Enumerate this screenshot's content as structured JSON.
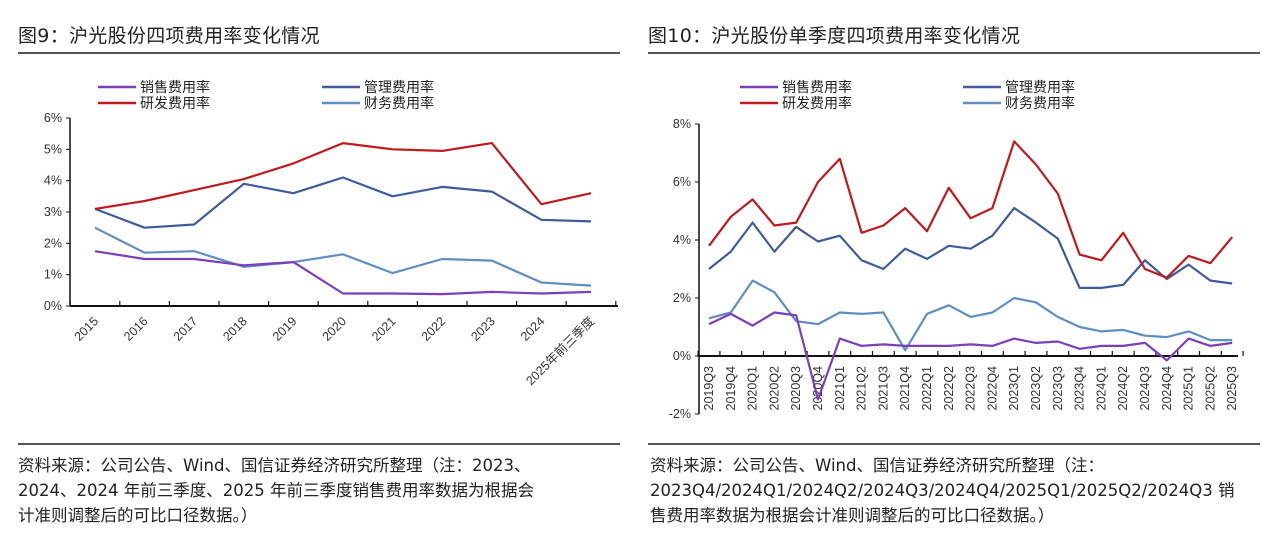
{
  "colors": {
    "sales": "#7b3fb8",
    "rnd": "#c0191e",
    "admin": "#3f5b9c",
    "finance": "#5f8ec0",
    "axis": "#111111"
  },
  "left": {
    "title": "图9：沪光股份四项费用率变化情况",
    "source_lines": [
      "资料来源：公司公告、Wind、国信证券经济研究所整理（注：2023、",
      "2024、2024 年前三季度、2025 年前三季度销售费用率数据为根据会",
      "计准则调整后的可比口径数据。）"
    ]
  },
  "right": {
    "title": "图10：沪光股份单季度四项费用率变化情况",
    "source_lines": [
      "资料来源：公司公告、Wind、国信证券经济研究所整理（注：",
      "2023Q4/2024Q1/2024Q2/2024Q3/2024Q4/2025Q1/2025Q2/2024Q3   销",
      "售费用率数据为根据会计准则调整后的可比口径数据。）"
    ]
  },
  "chart_data": [
    {
      "type": "line",
      "title": "图9：沪光股份四项费用率变化情况",
      "xlabel": "",
      "ylabel": "",
      "ylim": [
        0,
        6
      ],
      "yticks": [
        "0%",
        "1%",
        "2%",
        "3%",
        "4%",
        "5%",
        "6%"
      ],
      "ytick_values": [
        0,
        1,
        2,
        3,
        4,
        5,
        6
      ],
      "grid": false,
      "legend": "top",
      "categories": [
        "2015",
        "2016",
        "2017",
        "2018",
        "2019",
        "2020",
        "2021",
        "2022",
        "2023",
        "2024",
        "2025年前三季度"
      ],
      "series": [
        {
          "key": "sales",
          "name": "销售费用率",
          "values": [
            1.75,
            1.5,
            1.5,
            1.3,
            1.4,
            0.4,
            0.4,
            0.38,
            0.45,
            0.4,
            0.45
          ]
        },
        {
          "key": "admin",
          "name": "管理费用率",
          "values": [
            3.1,
            2.5,
            2.6,
            3.9,
            3.6,
            4.1,
            3.5,
            3.8,
            3.65,
            2.75,
            2.7
          ]
        },
        {
          "key": "rnd",
          "name": "研发费用率",
          "values": [
            3.1,
            3.35,
            3.7,
            4.05,
            4.55,
            5.2,
            5.0,
            4.95,
            5.2,
            3.25,
            3.6
          ]
        },
        {
          "key": "finance",
          "name": "财务费用率",
          "values": [
            2.5,
            1.7,
            1.75,
            1.25,
            1.4,
            1.65,
            1.05,
            1.5,
            1.45,
            0.75,
            0.65
          ]
        }
      ]
    },
    {
      "type": "line",
      "title": "图10：沪光股份单季度四项费用率变化情况",
      "xlabel": "",
      "ylabel": "",
      "ylim": [
        -2,
        8
      ],
      "yticks": [
        "-2%",
        "0%",
        "2%",
        "4%",
        "6%",
        "8%"
      ],
      "ytick_values": [
        -2,
        0,
        2,
        4,
        6,
        8
      ],
      "grid": false,
      "legend": "top",
      "categories": [
        "2019Q3",
        "2019Q4",
        "2020Q1",
        "2020Q2",
        "2020Q3",
        "2020Q4",
        "2021Q1",
        "2021Q2",
        "2021Q3",
        "2021Q4",
        "2022Q1",
        "2022Q2",
        "2022Q3",
        "2022Q4",
        "2023Q1",
        "2023Q2",
        "2023Q3",
        "2023Q4",
        "2024Q1",
        "2024Q2",
        "2024Q3",
        "2024Q4",
        "2025Q1",
        "2025Q2",
        "2025Q3"
      ],
      "series": [
        {
          "key": "sales",
          "name": "销售费用率",
          "values": [
            1.1,
            1.45,
            1.05,
            1.5,
            1.4,
            -1.5,
            0.6,
            0.35,
            0.4,
            0.35,
            0.35,
            0.35,
            0.4,
            0.35,
            0.6,
            0.45,
            0.5,
            0.25,
            0.35,
            0.35,
            0.45,
            -0.15,
            0.6,
            0.35,
            0.45
          ]
        },
        {
          "key": "admin",
          "name": "管理费用率",
          "values": [
            3.0,
            3.6,
            4.6,
            3.6,
            4.45,
            3.95,
            4.15,
            3.3,
            3.0,
            3.7,
            3.35,
            3.8,
            3.7,
            4.15,
            5.1,
            4.6,
            4.05,
            2.35,
            2.35,
            2.45,
            3.3,
            2.65,
            3.15,
            2.6,
            2.5
          ]
        },
        {
          "key": "rnd",
          "name": "研发费用率",
          "values": [
            3.8,
            4.8,
            5.4,
            4.5,
            4.6,
            6.0,
            6.8,
            4.25,
            4.5,
            5.1,
            4.3,
            5.8,
            4.75,
            5.1,
            7.4,
            6.6,
            5.6,
            3.5,
            3.3,
            4.25,
            3.0,
            2.7,
            3.45,
            3.2,
            4.1
          ]
        },
        {
          "key": "finance",
          "name": "财务费用率",
          "values": [
            1.3,
            1.5,
            2.6,
            2.2,
            1.2,
            1.1,
            1.5,
            1.45,
            1.5,
            0.2,
            1.45,
            1.75,
            1.35,
            1.5,
            2.0,
            1.85,
            1.35,
            1.0,
            0.85,
            0.9,
            0.7,
            0.65,
            0.85,
            0.55,
            0.55
          ]
        }
      ]
    }
  ]
}
